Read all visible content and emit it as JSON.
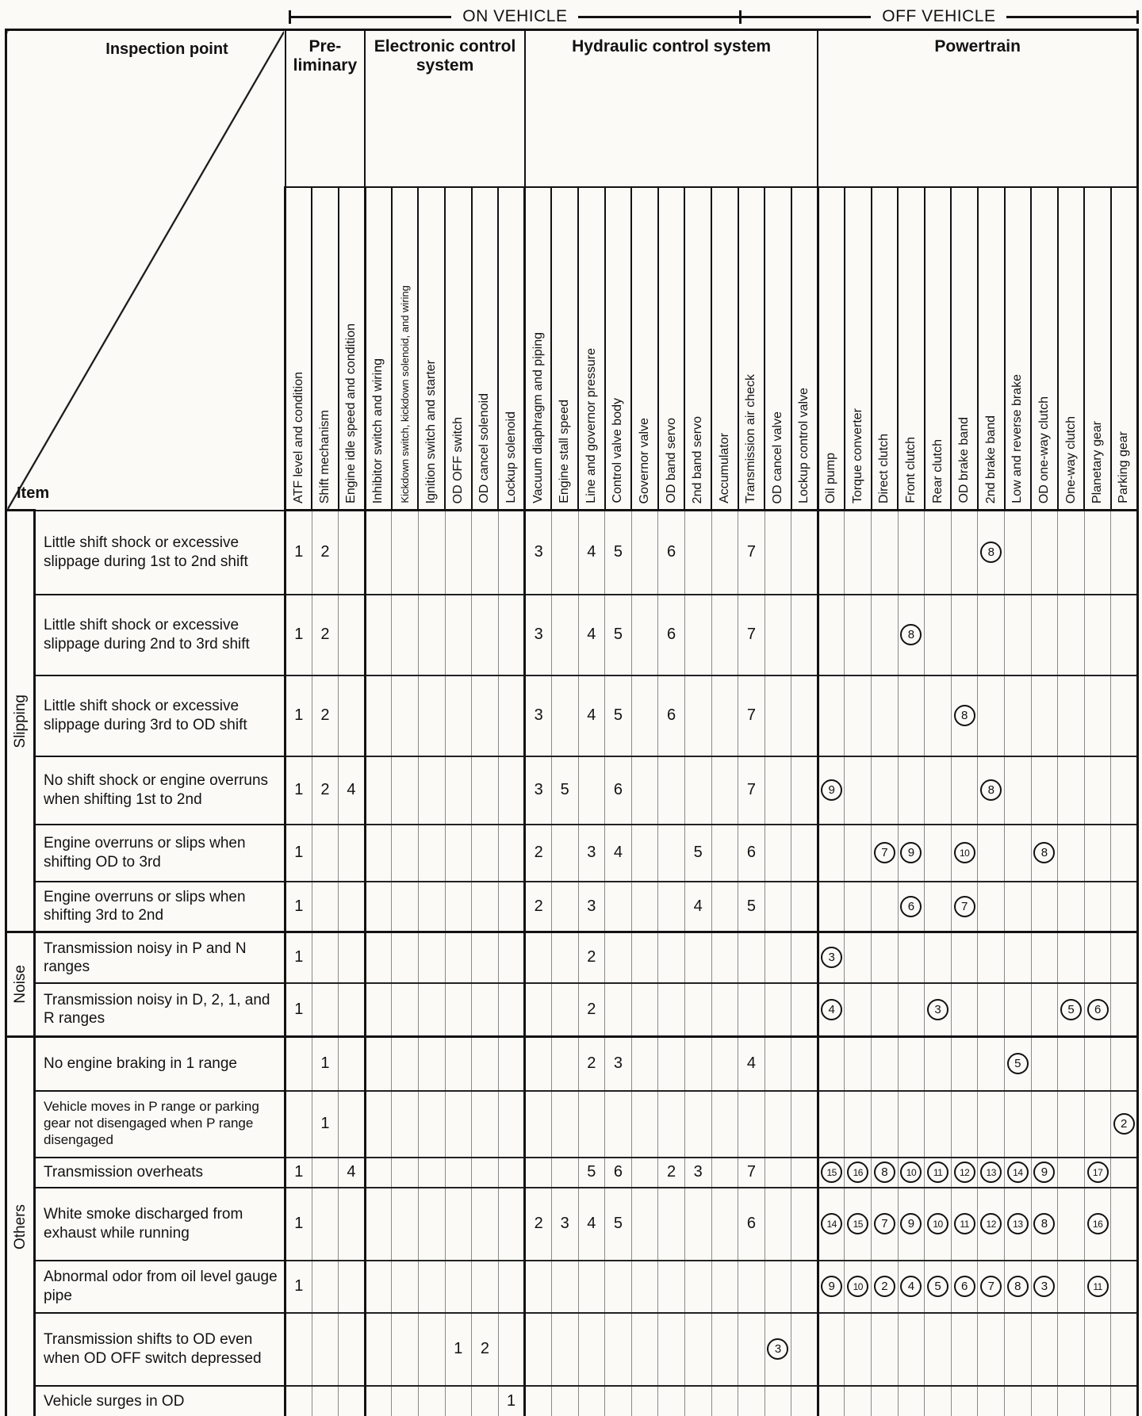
{
  "colors": {
    "ink": "#121212",
    "paper": "#fbfaf7"
  },
  "page": {
    "top_arrows": {
      "on_vehicle": "ON VEHICLE",
      "off_vehicle": "OFF VEHICLE"
    },
    "corner": {
      "top_label": "Inspection point",
      "bottom_label": "Item"
    }
  },
  "table": {
    "groups": [
      {
        "label": "Pre-liminary",
        "cols": 3
      },
      {
        "label": "Electronic control system",
        "cols": 6
      },
      {
        "label": "Hydraulic control system",
        "cols": 11
      },
      {
        "label": "Powertrain",
        "cols": 12
      }
    ],
    "on_vehicle_cols": 17,
    "columns": [
      "ATF level and condition",
      "Shift mechanism",
      "Engine idle speed and condition",
      "Inhibitor switch and wiring",
      "Kickdown switch, kickdown solenoid, and wiring",
      "Ignition switch and starter",
      "OD OFF switch",
      "OD cancel solenoid",
      "Lockup solenoid",
      "Vacuum diaphragm and piping",
      "Engine stall speed",
      "Line and governor pressure",
      "Control valve body",
      "Governor valve",
      "OD band servo",
      "2nd band servo",
      "Accumulator",
      "Transmission air check",
      "OD cancel valve",
      "Lockup control valve",
      "Oil pump",
      "Torque converter",
      "Direct clutch",
      "Front clutch",
      "Rear clutch",
      "OD brake band",
      "2nd brake band",
      "Low and reverse brake",
      "OD one-way clutch",
      "One-way clutch",
      "Planetary gear",
      "Parking gear"
    ],
    "row_groups": [
      {
        "label": "Slipping",
        "count": 6
      },
      {
        "label": "Noise",
        "count": 2
      },
      {
        "label": "Others",
        "count": 7
      }
    ],
    "rows": [
      {
        "item": "Little shift shock or excessive slippage during 1st to 2nd shift",
        "cells": [
          {
            "col": 1,
            "v": "1"
          },
          {
            "col": 2,
            "v": "2"
          },
          {
            "col": 10,
            "v": "3"
          },
          {
            "col": 12,
            "v": "4"
          },
          {
            "col": 13,
            "v": "5"
          },
          {
            "col": 15,
            "v": "6"
          },
          {
            "col": 18,
            "v": "7"
          },
          {
            "col": 27,
            "v": "8",
            "circled": true
          }
        ]
      },
      {
        "item": "Little shift shock or excessive slippage during 2nd to 3rd shift",
        "cells": [
          {
            "col": 1,
            "v": "1"
          },
          {
            "col": 2,
            "v": "2"
          },
          {
            "col": 10,
            "v": "3"
          },
          {
            "col": 12,
            "v": "4"
          },
          {
            "col": 13,
            "v": "5"
          },
          {
            "col": 15,
            "v": "6"
          },
          {
            "col": 18,
            "v": "7"
          },
          {
            "col": 24,
            "v": "8",
            "circled": true
          }
        ]
      },
      {
        "item": "Little shift shock or excessive slippage during 3rd to OD shift",
        "cells": [
          {
            "col": 1,
            "v": "1"
          },
          {
            "col": 2,
            "v": "2"
          },
          {
            "col": 10,
            "v": "3"
          },
          {
            "col": 12,
            "v": "4"
          },
          {
            "col": 13,
            "v": "5"
          },
          {
            "col": 15,
            "v": "6"
          },
          {
            "col": 18,
            "v": "7"
          },
          {
            "col": 26,
            "v": "8",
            "circled": true
          }
        ]
      },
      {
        "item": "No shift shock or engine overruns when shifting 1st to 2nd",
        "cells": [
          {
            "col": 1,
            "v": "1"
          },
          {
            "col": 2,
            "v": "2"
          },
          {
            "col": 3,
            "v": "4"
          },
          {
            "col": 10,
            "v": "3"
          },
          {
            "col": 11,
            "v": "5"
          },
          {
            "col": 13,
            "v": "6"
          },
          {
            "col": 18,
            "v": "7"
          },
          {
            "col": 21,
            "v": "9",
            "circled": true
          },
          {
            "col": 27,
            "v": "8",
            "circled": true
          }
        ]
      },
      {
        "item": "Engine overruns or slips when shifting OD to 3rd",
        "cells": [
          {
            "col": 1,
            "v": "1"
          },
          {
            "col": 10,
            "v": "2"
          },
          {
            "col": 12,
            "v": "3"
          },
          {
            "col": 13,
            "v": "4"
          },
          {
            "col": 16,
            "v": "5"
          },
          {
            "col": 18,
            "v": "6"
          },
          {
            "col": 23,
            "v": "7",
            "circled": true
          },
          {
            "col": 24,
            "v": "9",
            "circled": true
          },
          {
            "col": 26,
            "v": "10",
            "circled": true
          },
          {
            "col": 29,
            "v": "8",
            "circled": true
          }
        ]
      },
      {
        "item": "Engine overruns or slips when shifting 3rd to 2nd",
        "cells": [
          {
            "col": 1,
            "v": "1"
          },
          {
            "col": 10,
            "v": "2"
          },
          {
            "col": 12,
            "v": "3"
          },
          {
            "col": 16,
            "v": "4"
          },
          {
            "col": 18,
            "v": "5"
          },
          {
            "col": 24,
            "v": "6",
            "circled": true
          },
          {
            "col": 26,
            "v": "7",
            "circled": true
          }
        ]
      },
      {
        "item": "Transmission noisy in P and N ranges",
        "cells": [
          {
            "col": 1,
            "v": "1"
          },
          {
            "col": 12,
            "v": "2"
          },
          {
            "col": 21,
            "v": "3",
            "circled": true
          }
        ]
      },
      {
        "item": "Transmission noisy in D, 2, 1, and R ranges",
        "cells": [
          {
            "col": 1,
            "v": "1"
          },
          {
            "col": 12,
            "v": "2"
          },
          {
            "col": 21,
            "v": "4",
            "circled": true
          },
          {
            "col": 25,
            "v": "3",
            "circled": true
          },
          {
            "col": 30,
            "v": "5",
            "circled": true
          },
          {
            "col": 31,
            "v": "6",
            "circled": true
          }
        ]
      },
      {
        "item": "No engine braking in 1 range",
        "cells": [
          {
            "col": 2,
            "v": "1"
          },
          {
            "col": 12,
            "v": "2"
          },
          {
            "col": 13,
            "v": "3"
          },
          {
            "col": 18,
            "v": "4"
          },
          {
            "col": 28,
            "v": "5",
            "circled": true
          }
        ]
      },
      {
        "item": "Vehicle moves in P range or parking gear not disengaged when P range disengaged",
        "cells": [
          {
            "col": 2,
            "v": "1"
          },
          {
            "col": 32,
            "v": "2",
            "circled": true
          }
        ]
      },
      {
        "item": "Transmission overheats",
        "cells": [
          {
            "col": 1,
            "v": "1"
          },
          {
            "col": 3,
            "v": "4"
          },
          {
            "col": 12,
            "v": "5"
          },
          {
            "col": 13,
            "v": "6"
          },
          {
            "col": 15,
            "v": "2"
          },
          {
            "col": 16,
            "v": "3"
          },
          {
            "col": 18,
            "v": "7"
          },
          {
            "col": 21,
            "v": "15",
            "circled": true
          },
          {
            "col": 22,
            "v": "16",
            "circled": true
          },
          {
            "col": 23,
            "v": "8",
            "circled": true
          },
          {
            "col": 24,
            "v": "10",
            "circled": true
          },
          {
            "col": 25,
            "v": "11",
            "circled": true
          },
          {
            "col": 26,
            "v": "12",
            "circled": true
          },
          {
            "col": 27,
            "v": "13",
            "circled": true
          },
          {
            "col": 28,
            "v": "14",
            "circled": true
          },
          {
            "col": 29,
            "v": "9",
            "circled": true
          },
          {
            "col": 31,
            "v": "17",
            "circled": true
          }
        ]
      },
      {
        "item": "White smoke discharged from exhaust while running",
        "cells": [
          {
            "col": 1,
            "v": "1"
          },
          {
            "col": 10,
            "v": "2"
          },
          {
            "col": 11,
            "v": "3"
          },
          {
            "col": 12,
            "v": "4"
          },
          {
            "col": 13,
            "v": "5"
          },
          {
            "col": 18,
            "v": "6"
          },
          {
            "col": 21,
            "v": "14",
            "circled": true
          },
          {
            "col": 22,
            "v": "15",
            "circled": true
          },
          {
            "col": 23,
            "v": "7",
            "circled": true
          },
          {
            "col": 24,
            "v": "9",
            "circled": true
          },
          {
            "col": 25,
            "v": "10",
            "circled": true
          },
          {
            "col": 26,
            "v": "11",
            "circled": true
          },
          {
            "col": 27,
            "v": "12",
            "circled": true
          },
          {
            "col": 28,
            "v": "13",
            "circled": true
          },
          {
            "col": 29,
            "v": "8",
            "circled": true
          },
          {
            "col": 31,
            "v": "16",
            "circled": true
          }
        ]
      },
      {
        "item": "Abnormal odor from oil level gauge pipe",
        "cells": [
          {
            "col": 1,
            "v": "1"
          },
          {
            "col": 21,
            "v": "9",
            "circled": true
          },
          {
            "col": 22,
            "v": "10",
            "circled": true
          },
          {
            "col": 23,
            "v": "2",
            "circled": true
          },
          {
            "col": 24,
            "v": "4",
            "circled": true
          },
          {
            "col": 25,
            "v": "5",
            "circled": true
          },
          {
            "col": 26,
            "v": "6",
            "circled": true
          },
          {
            "col": 27,
            "v": "7",
            "circled": true
          },
          {
            "col": 28,
            "v": "8",
            "circled": true
          },
          {
            "col": 29,
            "v": "3",
            "circled": true
          },
          {
            "col": 31,
            "v": "11",
            "circled": true
          }
        ]
      },
      {
        "item": "Transmission shifts to OD even when OD OFF switch depressed",
        "cells": [
          {
            "col": 7,
            "v": "1"
          },
          {
            "col": 8,
            "v": "2"
          },
          {
            "col": 19,
            "v": "3",
            "circled": true
          }
        ]
      },
      {
        "item": "Vehicle surges in OD",
        "cells": [
          {
            "col": 9,
            "v": "1"
          }
        ]
      }
    ]
  }
}
